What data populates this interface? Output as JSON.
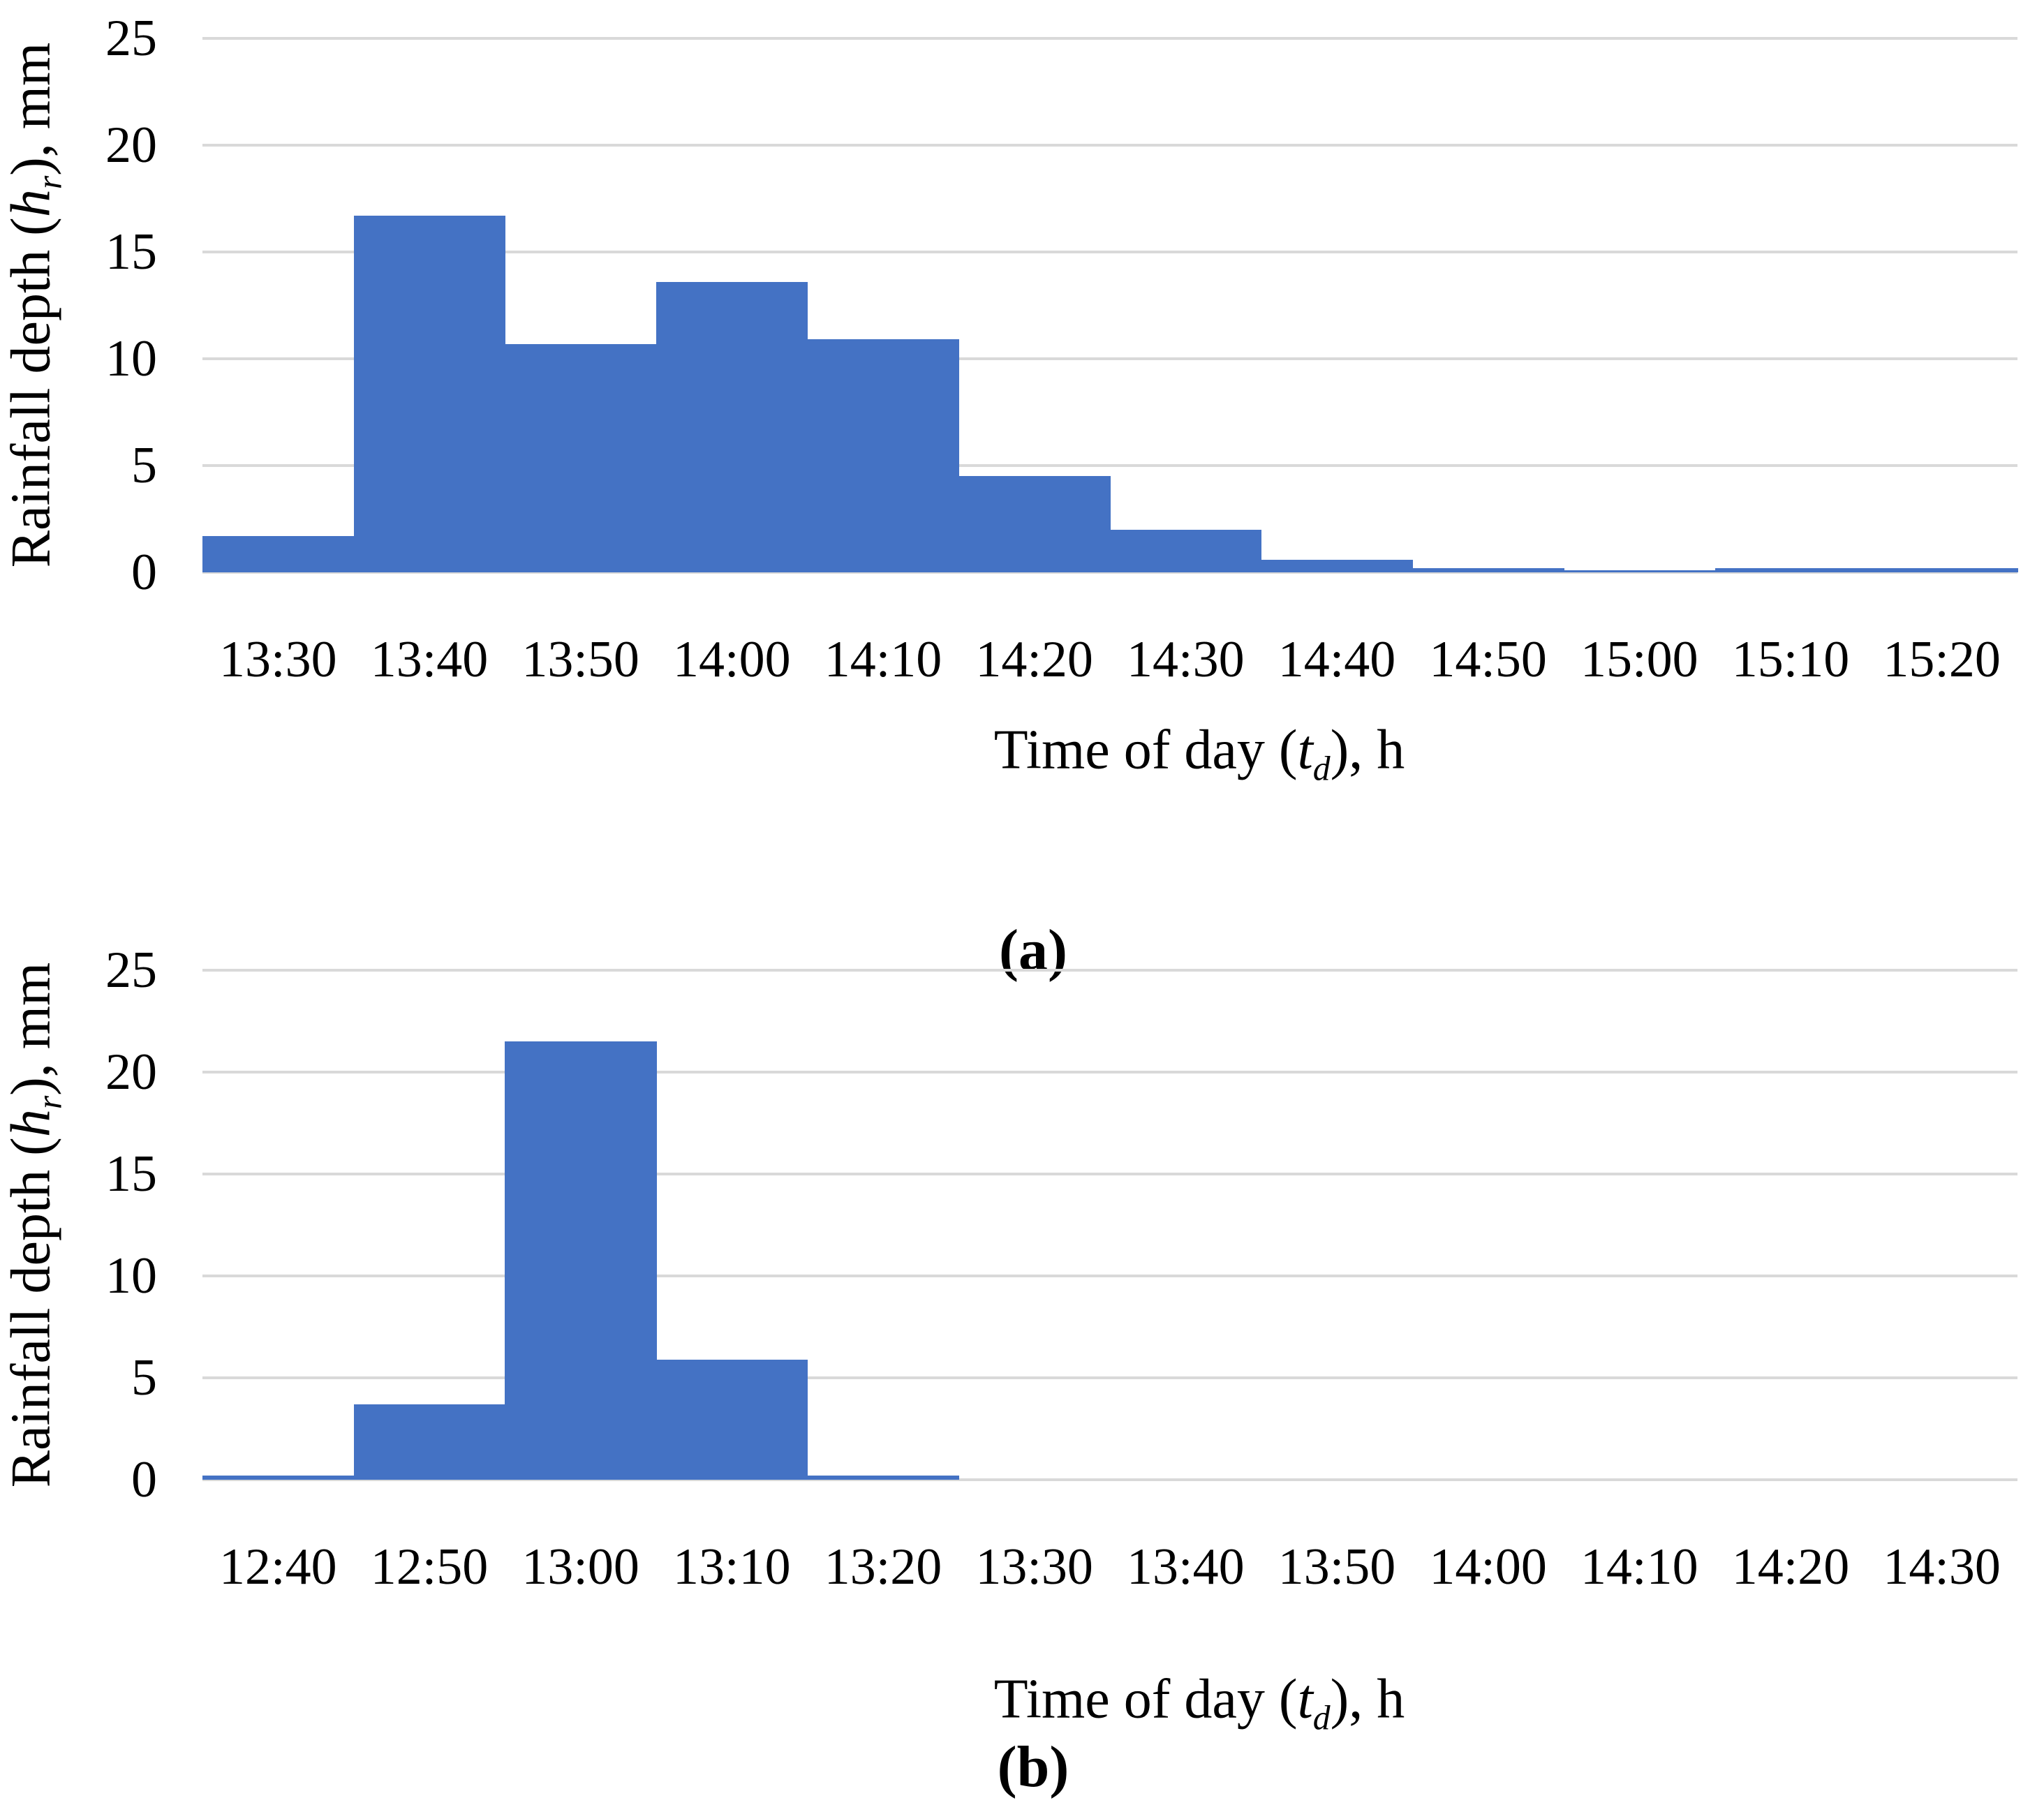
{
  "chart_data": [
    {
      "id": "a",
      "type": "bar",
      "title": "",
      "categories": [
        "13:30",
        "13:40",
        "13:50",
        "14:00",
        "14:10",
        "14:20",
        "14:30",
        "14:40",
        "14:50",
        "15:00",
        "15:10",
        "15:20"
      ],
      "values": [
        1.7,
        16.7,
        10.7,
        13.6,
        10.9,
        4.5,
        2.0,
        0.6,
        0.2,
        0.1,
        0.2,
        0.2
      ],
      "ylim": [
        0,
        25
      ],
      "yticks": [
        0,
        5,
        10,
        15,
        20,
        25
      ],
      "ylabel": "Rainfall depth (hr), mm",
      "xlabel": "Time of day (td), h",
      "ylabel_parts": {
        "prefix": "Rainfall depth (",
        "var": "h",
        "sub": "r",
        "suffix": "), mm"
      },
      "xlabel_parts": {
        "prefix": "Time of day (",
        "var": "t",
        "sub": "d",
        "suffix": "), h"
      },
      "panel_label": "(a)",
      "bar_color": "#4472C4",
      "gridline_color": "#D9D9D9",
      "grid": true,
      "legend_position": "none",
      "bar_gap": 0
    },
    {
      "id": "b",
      "type": "bar",
      "title": "",
      "categories": [
        "12:40",
        "12:50",
        "13:00",
        "13:10",
        "13:20",
        "13:30",
        "13:40",
        "13:50",
        "14:00",
        "14:10",
        "14:20",
        "14:30"
      ],
      "values": [
        0.2,
        3.7,
        21.5,
        5.9,
        0.2,
        0,
        0,
        0,
        0,
        0,
        0,
        0
      ],
      "ylim": [
        0,
        25
      ],
      "yticks": [
        0,
        5,
        10,
        15,
        20,
        25
      ],
      "ylabel": "Rainfall depth (hr), mm",
      "xlabel": "Time of day (td), h",
      "ylabel_parts": {
        "prefix": "Rainfall depth (",
        "var": "h",
        "sub": "r",
        "suffix": "), mm"
      },
      "xlabel_parts": {
        "prefix": "Time of day (",
        "var": "t",
        "sub": "d",
        "suffix": "), h"
      },
      "panel_label": "(b)",
      "bar_color": "#4472C4",
      "gridline_color": "#D9D9D9",
      "grid": true,
      "legend_position": "none",
      "bar_gap": 0
    }
  ]
}
